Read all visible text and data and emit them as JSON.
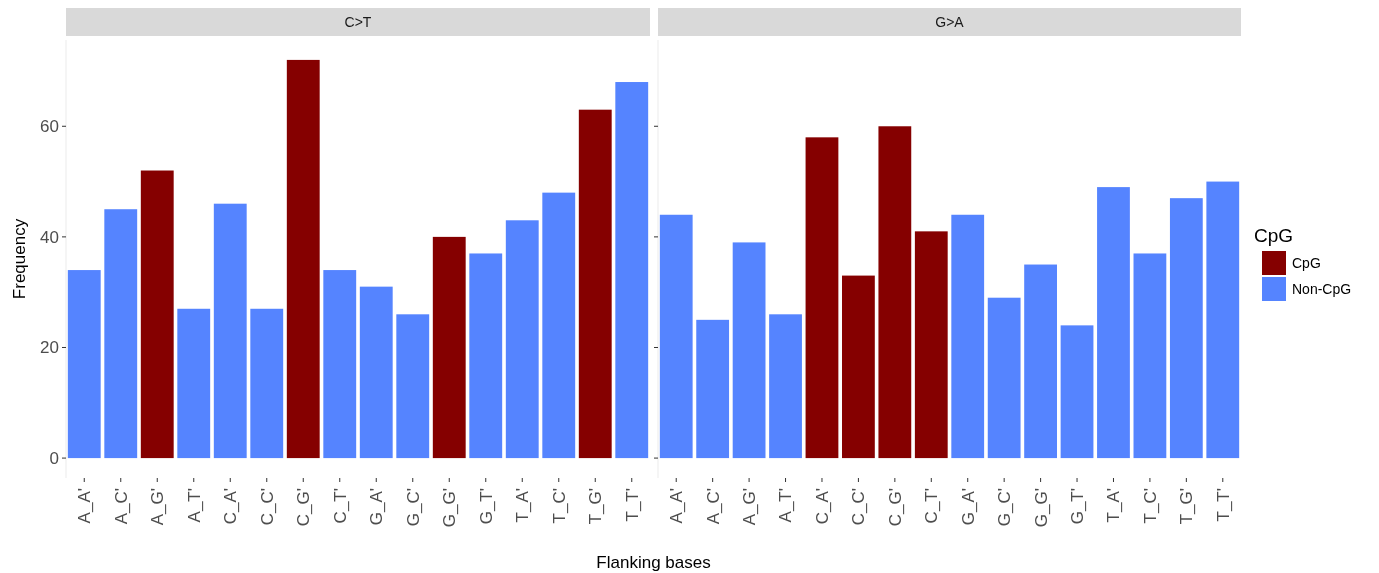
{
  "chart_data": [
    {
      "type": "bar",
      "title": "C>T",
      "xlabel": "Flanking bases",
      "ylabel": "Frequency",
      "stacked": true,
      "categories": [
        "A_A'",
        "A_C'",
        "A_G'",
        "A_T'",
        "C_A'",
        "C_C'",
        "C_G'",
        "C_T'",
        "G_A'",
        "G_C'",
        "G_G'",
        "G_T'",
        "T_A'",
        "T_C'",
        "T_G'",
        "T_T'"
      ],
      "series": [
        {
          "color": "#850000",
          "values": [
            null,
            null,
            52,
            null,
            null,
            null,
            72,
            null,
            null,
            null,
            40,
            null,
            null,
            null,
            63,
            null
          ]
        },
        {
          "color": "#5584ff",
          "values": [
            34,
            45,
            null,
            27,
            46,
            27,
            null,
            34,
            31,
            26,
            null,
            37,
            43,
            48,
            null,
            68
          ]
        }
      ],
      "ylim": [
        -3.6,
        75.6
      ],
      "yticks": [
        0,
        20,
        40,
        60
      ]
    },
    {
      "type": "bar",
      "title": "G>A",
      "stacked": true,
      "legend": "right",
      "legend_title": "CpG",
      "tick_labels": "x",
      "categories": [
        "A_A'",
        "A_C'",
        "A_G'",
        "A_T'",
        "C_A'",
        "C_C'",
        "C_G'",
        "C_T'",
        "G_A'",
        "G_C'",
        "G_G'",
        "G_T'",
        "T_A'",
        "T_C'",
        "T_G'",
        "T_T'"
      ],
      "series": [
        {
          "name": "CpG",
          "color": "#850000",
          "values": [
            null,
            null,
            null,
            null,
            58,
            33,
            60,
            41,
            null,
            null,
            null,
            null,
            null,
            null,
            null,
            null
          ]
        },
        {
          "name": "Non-CpG",
          "color": "#5584ff",
          "values": [
            44,
            25,
            39,
            26,
            null,
            null,
            null,
            null,
            44,
            29,
            35,
            24,
            49,
            37,
            47,
            50
          ]
        }
      ],
      "ylim": [
        -3.6,
        75.6
      ],
      "yticks": [
        0,
        20,
        40,
        60
      ]
    }
  ]
}
